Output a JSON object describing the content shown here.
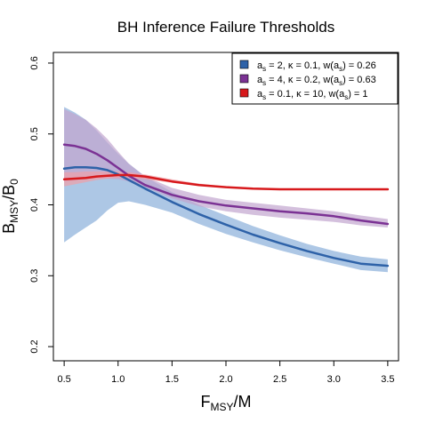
{
  "chart_data": {
    "type": "line",
    "title": "BH Inference Failure Thresholds",
    "xlabel": {
      "main": "F",
      "sub": "MSY",
      "rest": "/M"
    },
    "ylabel": {
      "main": "B",
      "sub": "MSY",
      "mid": "/B",
      "sub2": "0"
    },
    "xlim": [
      0.4,
      3.6
    ],
    "ylim": [
      0.18,
      0.615
    ],
    "xticks": [
      "0.5",
      "1.0",
      "1.5",
      "2.0",
      "2.5",
      "3.0",
      "3.5"
    ],
    "yticks": [
      "0.2",
      "0.3",
      "0.4",
      "0.5",
      "0.6"
    ],
    "grid": false,
    "legend_position": "top-right",
    "series": [
      {
        "legend": {
          "a_val": "2",
          "kappa_val": "0.1",
          "w_val": "0.26"
        },
        "color": "#2E62A8",
        "band_color": "#9FBDE0",
        "x": [
          0.5,
          0.6,
          0.7,
          0.8,
          0.9,
          1.0,
          1.1,
          1.25,
          1.5,
          1.75,
          2.0,
          2.25,
          2.5,
          2.75,
          3.0,
          3.25,
          3.5
        ],
        "y": [
          0.451,
          0.453,
          0.453,
          0.452,
          0.449,
          0.443,
          0.435,
          0.423,
          0.404,
          0.387,
          0.372,
          0.358,
          0.346,
          0.335,
          0.325,
          0.317,
          0.314
        ],
        "lower": [
          0.347,
          0.358,
          0.368,
          0.378,
          0.392,
          0.403,
          0.405,
          0.4,
          0.389,
          0.373,
          0.359,
          0.347,
          0.336,
          0.326,
          0.317,
          0.308,
          0.305
        ],
        "upper": [
          0.538,
          0.53,
          0.52,
          0.505,
          0.488,
          0.472,
          0.458,
          0.44,
          0.418,
          0.4,
          0.385,
          0.37,
          0.357,
          0.345,
          0.335,
          0.327,
          0.323
        ]
      },
      {
        "legend": {
          "a_val": "4",
          "kappa_val": "0.2",
          "w_val": "0.63"
        },
        "color": "#7B3294",
        "band_color": "#C2A5CF",
        "x": [
          0.5,
          0.6,
          0.7,
          0.8,
          0.9,
          1.0,
          1.1,
          1.25,
          1.5,
          1.75,
          2.0,
          2.25,
          2.5,
          2.75,
          3.0,
          3.25,
          3.5
        ],
        "y": [
          0.485,
          0.483,
          0.479,
          0.472,
          0.463,
          0.452,
          0.441,
          0.428,
          0.414,
          0.405,
          0.399,
          0.395,
          0.391,
          0.388,
          0.384,
          0.378,
          0.373
        ],
        "lower": [
          0.432,
          0.434,
          0.436,
          0.437,
          0.437,
          0.436,
          0.433,
          0.425,
          0.409,
          0.398,
          0.391,
          0.386,
          0.382,
          0.379,
          0.376,
          0.371,
          0.368
        ],
        "upper": [
          0.535,
          0.528,
          0.52,
          0.508,
          0.493,
          0.475,
          0.458,
          0.44,
          0.424,
          0.414,
          0.407,
          0.403,
          0.399,
          0.395,
          0.391,
          0.385,
          0.38
        ]
      },
      {
        "legend": {
          "a_val": "0.1",
          "kappa_val": "10",
          "w_val": "1"
        },
        "color": "#D7191C",
        "band_color": "#F0A0A8",
        "x": [
          0.5,
          0.6,
          0.7,
          0.8,
          0.9,
          1.0,
          1.1,
          1.25,
          1.5,
          1.75,
          2.0,
          2.25,
          2.5,
          2.75,
          3.0,
          3.25,
          3.5
        ],
        "y": [
          0.436,
          0.437,
          0.438,
          0.44,
          0.441,
          0.442,
          0.442,
          0.44,
          0.433,
          0.428,
          0.425,
          0.423,
          0.422,
          0.422,
          0.422,
          0.422,
          0.422
        ],
        "lower": [
          0.426,
          0.429,
          0.432,
          0.435,
          0.437,
          0.438,
          0.438,
          0.436,
          0.431,
          0.427,
          0.424,
          0.422,
          0.421,
          0.421,
          0.421,
          0.421,
          0.421
        ],
        "upper": [
          0.446,
          0.446,
          0.447,
          0.447,
          0.447,
          0.447,
          0.446,
          0.443,
          0.436,
          0.43,
          0.426,
          0.424,
          0.423,
          0.423,
          0.423,
          0.423,
          0.423
        ]
      }
    ]
  }
}
